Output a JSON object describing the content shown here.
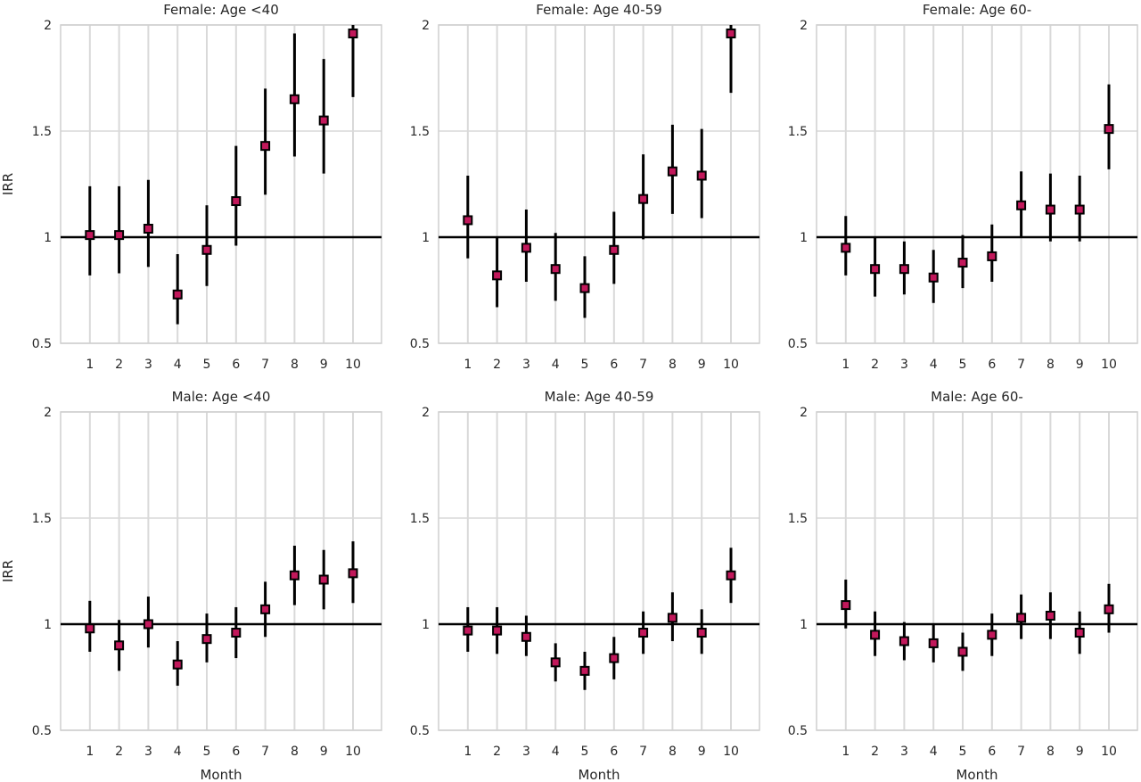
{
  "colors": {
    "marker_fill": "#c2185b",
    "marker_edge": "#000000",
    "ci": "#000000",
    "reference_line": "#000000",
    "grid": "#d9d9d9",
    "frame": "#cfcfcf"
  },
  "chart_data": [
    {
      "type": "scatter",
      "title": "Female: Age <40",
      "xlabel": "",
      "ylabel": "IRR",
      "x": [
        1,
        2,
        3,
        4,
        5,
        6,
        7,
        8,
        9,
        10
      ],
      "x_ticks": [
        "1",
        "2",
        "3",
        "4",
        "5",
        "6",
        "7",
        "8",
        "9",
        "10"
      ],
      "y": [
        1.01,
        1.01,
        1.04,
        0.73,
        0.94,
        1.17,
        1.43,
        1.65,
        1.55,
        1.96
      ],
      "ci_low": [
        0.82,
        0.83,
        0.86,
        0.59,
        0.77,
        0.96,
        1.2,
        1.38,
        1.3,
        1.66
      ],
      "ci_high": [
        1.24,
        1.24,
        1.27,
        0.92,
        1.15,
        1.43,
        1.7,
        1.96,
        1.84,
        2.0
      ],
      "ylim": [
        0.5,
        2
      ],
      "y_ticks": [
        "0.5",
        "1",
        "1.5",
        "2"
      ],
      "reference_line": 1,
      "grid": true
    },
    {
      "type": "scatter",
      "title": "Female: Age 40-59",
      "xlabel": "",
      "ylabel": "",
      "x": [
        1,
        2,
        3,
        4,
        5,
        6,
        7,
        8,
        9,
        10
      ],
      "x_ticks": [
        "1",
        "2",
        "3",
        "4",
        "5",
        "6",
        "7",
        "8",
        "9",
        "10"
      ],
      "y": [
        1.08,
        0.82,
        0.95,
        0.85,
        0.76,
        0.94,
        1.18,
        1.31,
        1.29,
        1.96
      ],
      "ci_low": [
        0.9,
        0.67,
        0.79,
        0.7,
        0.62,
        0.78,
        0.99,
        1.11,
        1.09,
        1.68
      ],
      "ci_high": [
        1.29,
        1.0,
        1.13,
        1.02,
        0.91,
        1.12,
        1.39,
        1.53,
        1.51,
        2.0
      ],
      "ylim": [
        0.5,
        2
      ],
      "y_ticks": [
        "0.5",
        "1",
        "1.5",
        "2"
      ],
      "reference_line": 1,
      "grid": true
    },
    {
      "type": "scatter",
      "title": "Female: Age 60-",
      "xlabel": "",
      "ylabel": "",
      "x": [
        1,
        2,
        3,
        4,
        5,
        6,
        7,
        8,
        9,
        10
      ],
      "x_ticks": [
        "1",
        "2",
        "3",
        "4",
        "5",
        "6",
        "7",
        "8",
        "9",
        "10"
      ],
      "y": [
        0.95,
        0.85,
        0.85,
        0.81,
        0.88,
        0.91,
        1.15,
        1.13,
        1.13,
        1.51
      ],
      "ci_low": [
        0.82,
        0.72,
        0.73,
        0.69,
        0.76,
        0.79,
        1.0,
        0.98,
        0.98,
        1.32
      ],
      "ci_high": [
        1.1,
        1.0,
        0.98,
        0.94,
        1.01,
        1.06,
        1.31,
        1.3,
        1.29,
        1.72
      ],
      "ylim": [
        0.5,
        2
      ],
      "y_ticks": [
        "0.5",
        "1",
        "1.5",
        "2"
      ],
      "reference_line": 1,
      "grid": true
    },
    {
      "type": "scatter",
      "title": "Male: Age <40",
      "xlabel": "Month",
      "ylabel": "IRR",
      "x": [
        1,
        2,
        3,
        4,
        5,
        6,
        7,
        8,
        9,
        10
      ],
      "x_ticks": [
        "1",
        "2",
        "3",
        "4",
        "5",
        "6",
        "7",
        "8",
        "9",
        "10"
      ],
      "y": [
        0.98,
        0.9,
        1.0,
        0.81,
        0.93,
        0.96,
        1.07,
        1.23,
        1.21,
        1.24
      ],
      "ci_low": [
        0.87,
        0.78,
        0.89,
        0.71,
        0.82,
        0.84,
        0.94,
        1.09,
        1.07,
        1.1
      ],
      "ci_high": [
        1.11,
        1.02,
        1.13,
        0.92,
        1.05,
        1.08,
        1.2,
        1.37,
        1.35,
        1.39
      ],
      "ylim": [
        0.5,
        2
      ],
      "y_ticks": [
        "0.5",
        "1",
        "1.5",
        "2"
      ],
      "reference_line": 1,
      "grid": true
    },
    {
      "type": "scatter",
      "title": "Male: Age 40-59",
      "xlabel": "Month",
      "ylabel": "",
      "x": [
        1,
        2,
        3,
        4,
        5,
        6,
        7,
        8,
        9,
        10
      ],
      "x_ticks": [
        "1",
        "2",
        "3",
        "4",
        "5",
        "6",
        "7",
        "8",
        "9",
        "10"
      ],
      "y": [
        0.97,
        0.97,
        0.94,
        0.82,
        0.78,
        0.84,
        0.96,
        1.03,
        0.96,
        1.23
      ],
      "ci_low": [
        0.87,
        0.86,
        0.85,
        0.73,
        0.69,
        0.74,
        0.86,
        0.92,
        0.86,
        1.1
      ],
      "ci_high": [
        1.08,
        1.08,
        1.04,
        0.91,
        0.87,
        0.94,
        1.06,
        1.15,
        1.07,
        1.36
      ],
      "ylim": [
        0.5,
        2
      ],
      "y_ticks": [
        "0.5",
        "1",
        "1.5",
        "2"
      ],
      "reference_line": 1,
      "grid": true
    },
    {
      "type": "scatter",
      "title": "Male: Age 60-",
      "xlabel": "Month",
      "ylabel": "",
      "x": [
        1,
        2,
        3,
        4,
        5,
        6,
        7,
        8,
        9,
        10
      ],
      "x_ticks": [
        "1",
        "2",
        "3",
        "4",
        "5",
        "6",
        "7",
        "8",
        "9",
        "10"
      ],
      "y": [
        1.09,
        0.95,
        0.92,
        0.91,
        0.87,
        0.95,
        1.03,
        1.04,
        0.96,
        1.07
      ],
      "ci_low": [
        0.98,
        0.85,
        0.83,
        0.82,
        0.78,
        0.85,
        0.93,
        0.93,
        0.86,
        0.96
      ],
      "ci_high": [
        1.21,
        1.06,
        1.01,
        1.0,
        0.96,
        1.05,
        1.14,
        1.15,
        1.06,
        1.19
      ],
      "ylim": [
        0.5,
        2
      ],
      "y_ticks": [
        "0.5",
        "1",
        "1.5",
        "2"
      ],
      "reference_line": 1,
      "grid": true
    }
  ]
}
